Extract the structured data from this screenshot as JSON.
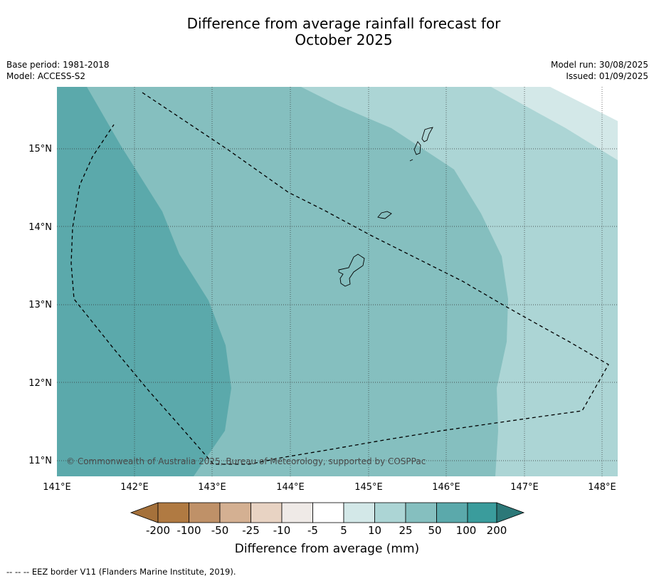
{
  "header": {
    "title_line1": "Difference from average rainfall forecast for",
    "title_line2": "October 2025"
  },
  "meta": {
    "base_period": "Base period: 1981-2018",
    "model": "Model: ACCESS-S2",
    "model_run": "Model run: 30/08/2025",
    "issued": "Issued: 01/09/2025"
  },
  "map": {
    "lon_labels": [
      "141°E",
      "142°E",
      "143°E",
      "144°E",
      "145°E",
      "146°E",
      "147°E",
      "148°E"
    ],
    "lat_labels": [
      "15°N",
      "14°N",
      "13°N",
      "12°N",
      "11°N"
    ],
    "copyright": "© Commonwealth of Australia 2025, Bureau of Meteorology, supported by COSPPac",
    "colors": {
      "band_50_100": "#5ba9ab",
      "band_25_50": "#85bfbf",
      "band_10_25": "#acd5d5",
      "band_5_10": "#d3e8e8"
    }
  },
  "colorbar": {
    "labels": [
      "-200",
      "-100",
      "-50",
      "-25",
      "-10",
      "-5",
      "5",
      "10",
      "25",
      "50",
      "100",
      "200"
    ],
    "colors": [
      "#a5713b",
      "#b07a42",
      "#bf9168",
      "#d4b092",
      "#e8d3c3",
      "#efeae7",
      "#ffffff",
      "#d3e8e8",
      "#acd5d5",
      "#85bfbf",
      "#5ba9ab",
      "#3a9c9c",
      "#2c7878"
    ],
    "title": "Difference from average (mm)"
  },
  "footer": {
    "eez_note": "--  --  -- EEZ border V11 (Flanders Marine Institute, 2019)."
  }
}
